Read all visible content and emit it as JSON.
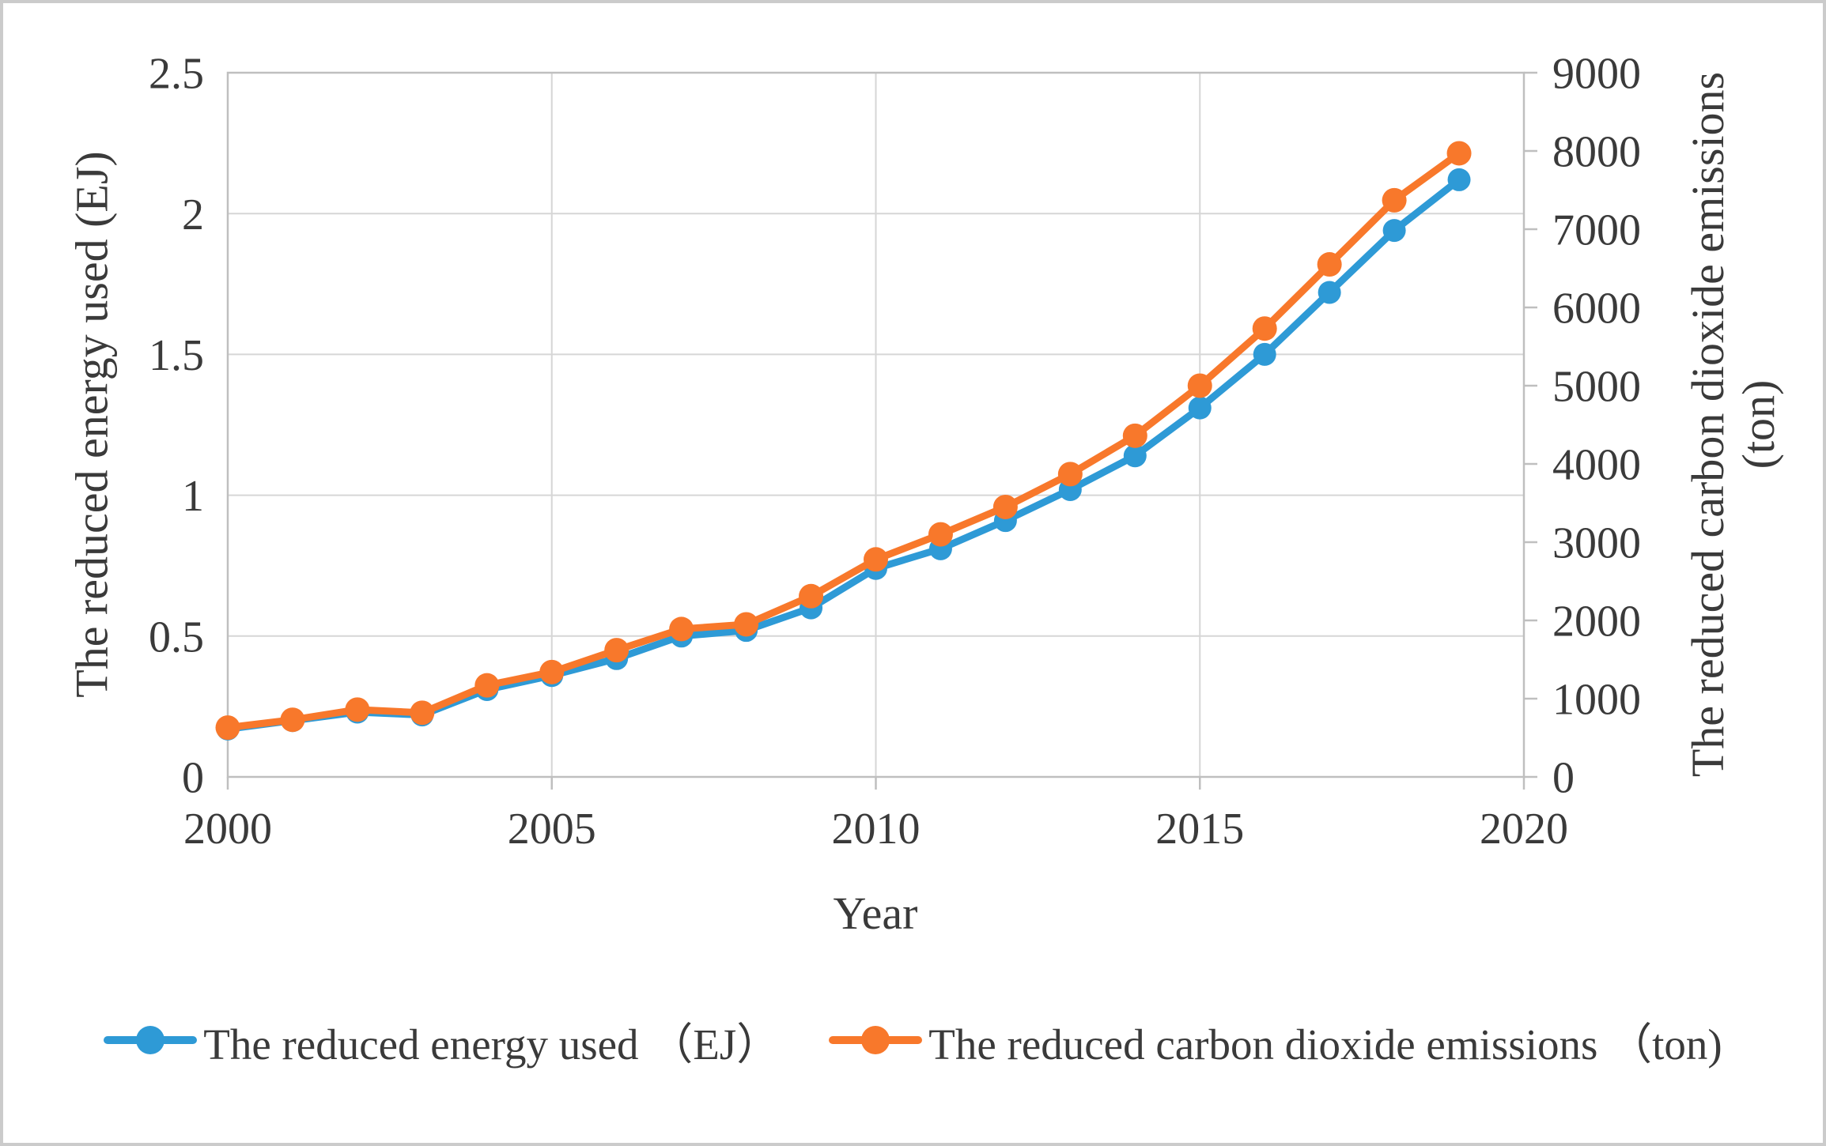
{
  "chart": {
    "x_axis": {
      "title": "Year",
      "tick_labels": [
        "2000",
        "2005",
        "2010",
        "2015",
        "2020"
      ],
      "tick_values": [
        2000,
        2005,
        2010,
        2015,
        2020
      ]
    },
    "left_axis": {
      "title": "The reduced energy used (EJ)",
      "tick_labels": [
        "0",
        "0.5",
        "1",
        "1.5",
        "2",
        "2.5"
      ],
      "tick_values": [
        0,
        0.5,
        1,
        1.5,
        2,
        2.5
      ]
    },
    "right_axis": {
      "title_line1": "The reduced carbon dioxide emissions",
      "title_line2": "(ton)",
      "tick_labels": [
        "0",
        "1000",
        "2000",
        "3000",
        "4000",
        "5000",
        "6000",
        "7000",
        "8000",
        "9000"
      ],
      "tick_values": [
        0,
        1000,
        2000,
        3000,
        4000,
        5000,
        6000,
        7000,
        8000,
        9000
      ]
    },
    "legend": {
      "items": [
        {
          "label": "The reduced energy used （EJ）",
          "color": "#2E9AD6"
        },
        {
          "label": "The reduced carbon dioxide emissions （ton)",
          "color": "#F8782B"
        }
      ]
    }
  },
  "chart_data": {
    "type": "line",
    "x": [
      2000,
      2001,
      2002,
      2003,
      2004,
      2005,
      2006,
      2007,
      2008,
      2009,
      2010,
      2011,
      2012,
      2013,
      2014,
      2015,
      2016,
      2017,
      2018,
      2019
    ],
    "series": [
      {
        "name": "The reduced energy used (EJ)",
        "yaxis": "left",
        "color": "#2E9AD6",
        "marker": "circle",
        "values": [
          0.17,
          0.2,
          0.23,
          0.22,
          0.31,
          0.36,
          0.42,
          0.5,
          0.52,
          0.6,
          0.74,
          0.81,
          0.91,
          1.02,
          1.14,
          1.31,
          1.5,
          1.72,
          1.94,
          2.12
        ]
      },
      {
        "name": "The reduced carbon dioxide emissions (ton)",
        "yaxis": "right",
        "color": "#F8782B",
        "marker": "circle",
        "values": [
          630,
          730,
          860,
          820,
          1170,
          1340,
          1620,
          1890,
          1950,
          2310,
          2780,
          3100,
          3450,
          3870,
          4360,
          5000,
          5730,
          6550,
          7370,
          7970
        ]
      }
    ],
    "title": "",
    "xlabel": "Year",
    "ylabel_left": "The reduced energy used (EJ)",
    "ylabel_right": "The reduced carbon dioxide emissions (ton)",
    "xlim": [
      2000,
      2020
    ],
    "ylim_left": [
      0,
      2.5
    ],
    "ylim_right": [
      0,
      9000
    ],
    "grid": true,
    "legend_position": "bottom"
  },
  "colors": {
    "text": "#3A3A3A",
    "gridline": "#D6D6D6",
    "axis_border": "#BFBFBF",
    "figure_border": "#CBCBCB",
    "series_energy": "#2E9AD6",
    "series_co2": "#F8782B"
  }
}
